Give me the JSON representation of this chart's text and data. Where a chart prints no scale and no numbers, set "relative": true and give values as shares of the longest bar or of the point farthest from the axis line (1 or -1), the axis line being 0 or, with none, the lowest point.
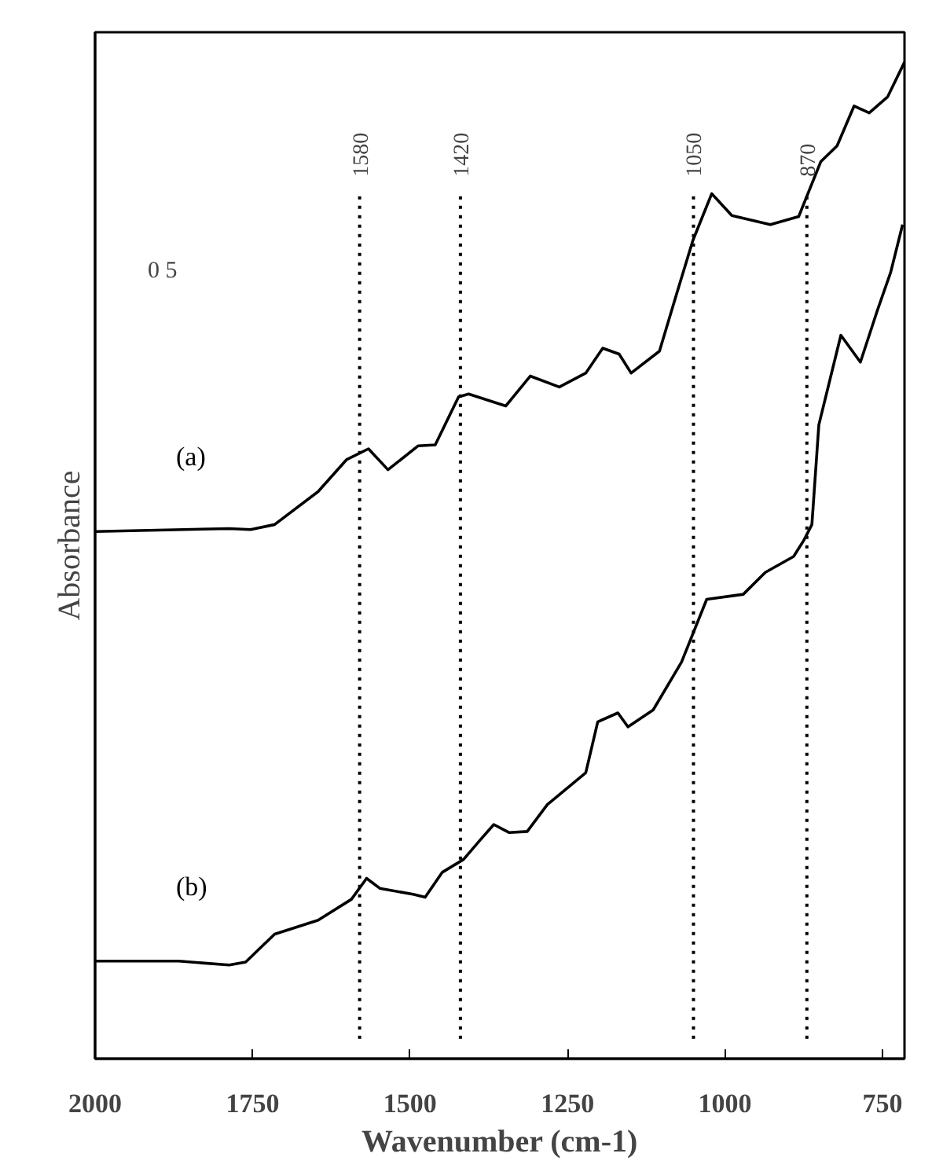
{
  "chart_data": {
    "type": "line",
    "relative": true,
    "xlabel": "Wavenumber (cm-1)",
    "ylabel": "Absorbance",
    "xlim": [
      2000,
      715
    ],
    "xticks": [
      2000,
      1750,
      1500,
      1250,
      1000,
      750
    ],
    "grid": false,
    "marker": "none",
    "line_style": "solid",
    "annotations": [
      "0 5"
    ],
    "ref_lines": [
      {
        "axis": "x",
        "value": 1580,
        "label": "1580",
        "line_style": "dotted",
        "color": "#000000"
      },
      {
        "axis": "x",
        "value": 1420,
        "label": "1420",
        "line_style": "dotted",
        "color": "#000000"
      },
      {
        "axis": "x",
        "value": 1050,
        "label": "1050",
        "line_style": "dotted",
        "color": "#000000"
      },
      {
        "axis": "x",
        "value": 870,
        "label": "870",
        "line_style": "dotted",
        "color": "#000000"
      }
    ],
    "series": [
      {
        "name": "(a)",
        "color": "#000000",
        "x": [
          2000,
          1787,
          1753,
          1715,
          1646,
          1601,
          1566,
          1535,
          1487,
          1460,
          1423,
          1407,
          1348,
          1309,
          1263,
          1221,
          1194,
          1168,
          1149,
          1104,
          1077,
          1051,
          1021,
          989,
          928,
          883,
          848,
          822,
          795,
          771,
          742,
          715
        ],
        "values": [
          0.529,
          0.532,
          0.531,
          0.536,
          0.569,
          0.601,
          0.612,
          0.591,
          0.615,
          0.616,
          0.664,
          0.667,
          0.655,
          0.685,
          0.674,
          0.688,
          0.713,
          0.707,
          0.688,
          0.71,
          0.767,
          0.821,
          0.868,
          0.846,
          0.837,
          0.845,
          0.9,
          0.916,
          0.956,
          0.949,
          0.965,
          1.0
        ]
      },
      {
        "name": "(b)",
        "color": "#000000",
        "x": [
          2000,
          1867,
          1787,
          1761,
          1715,
          1646,
          1593,
          1569,
          1548,
          1495,
          1476,
          1449,
          1415,
          1388,
          1367,
          1343,
          1314,
          1282,
          1221,
          1202,
          1170,
          1154,
          1114,
          1069,
          1029,
          971,
          936,
          891,
          875,
          862,
          851,
          816,
          785,
          758,
          737,
          718
        ],
        "values": [
          0.098,
          0.098,
          0.094,
          0.097,
          0.125,
          0.139,
          0.16,
          0.181,
          0.171,
          0.165,
          0.162,
          0.187,
          0.2,
          0.22,
          0.235,
          0.227,
          0.228,
          0.255,
          0.287,
          0.338,
          0.347,
          0.333,
          0.35,
          0.398,
          0.461,
          0.466,
          0.488,
          0.504,
          0.52,
          0.536,
          0.636,
          0.726,
          0.699,
          0.751,
          0.789,
          0.837
        ]
      }
    ]
  }
}
